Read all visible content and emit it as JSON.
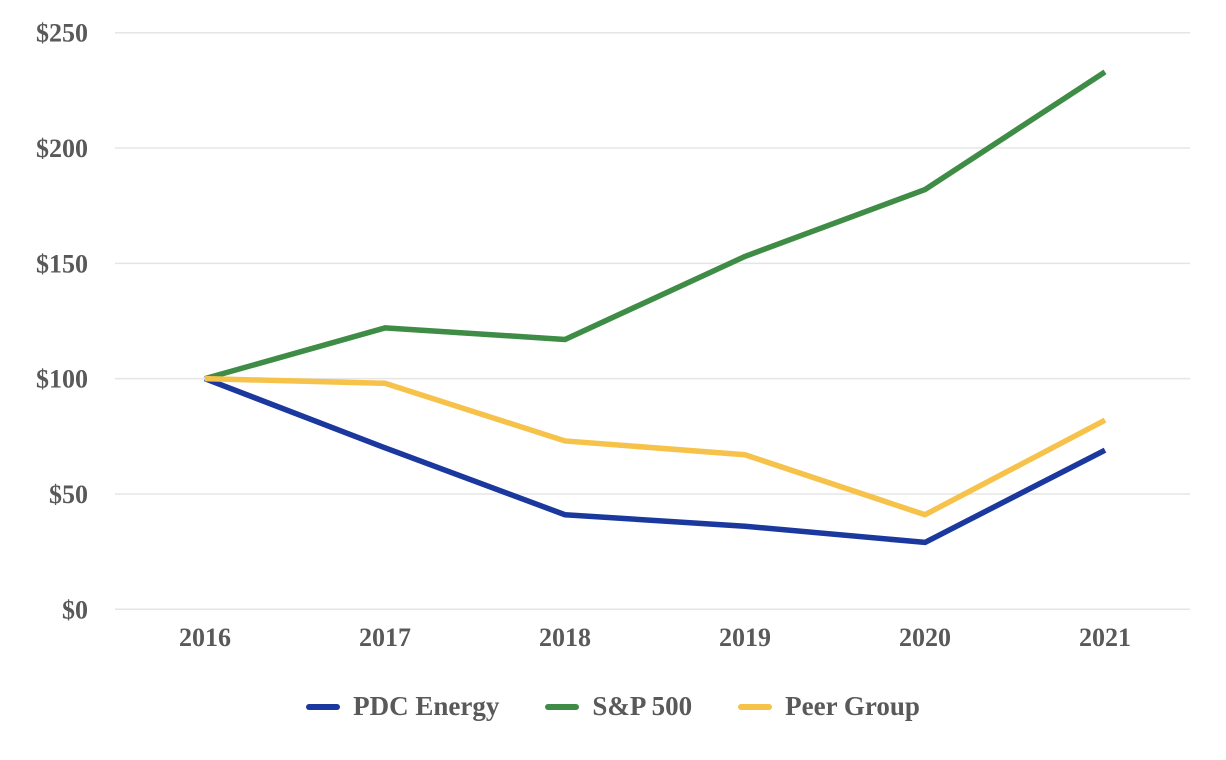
{
  "chart_data": {
    "type": "line",
    "title": "",
    "xlabel": "",
    "ylabel": "",
    "x": [
      "2016",
      "2017",
      "2018",
      "2019",
      "2020",
      "2021"
    ],
    "series": [
      {
        "name": "PDC Energy",
        "color": "#1A389E",
        "values": [
          100,
          70,
          41,
          36,
          29,
          69
        ]
      },
      {
        "name": "S&P 500",
        "color": "#3E8C46",
        "values": [
          100,
          122,
          117,
          153,
          182,
          233
        ]
      },
      {
        "name": "Peer Group",
        "color": "#F6C24A",
        "values": [
          100,
          98,
          73,
          67,
          41,
          82
        ]
      }
    ],
    "y_ticks": [
      0,
      50,
      100,
      150,
      200,
      250
    ],
    "y_tick_labels": [
      "$0",
      "$50",
      "$100",
      "$150",
      "$200",
      "$250"
    ],
    "ylim": [
      0,
      250
    ],
    "grid": "horizontal",
    "legend_position": "bottom",
    "axis_text_color": "#595959",
    "gridline_color": "#E5E5E5",
    "background": "#FFFFFF"
  }
}
